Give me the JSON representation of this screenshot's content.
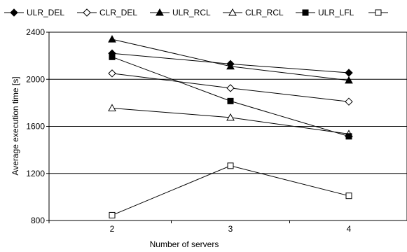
{
  "chart_data": {
    "type": "line",
    "title": "",
    "xlabel": "Number of servers",
    "ylabel": "Average execution time [s]",
    "categories": [
      "2",
      "3",
      "4"
    ],
    "y_ticks": [
      "800",
      "1200",
      "1600",
      "2000",
      "2400"
    ],
    "ylim": [
      800,
      2400
    ],
    "grid": "horizontal",
    "legend_position": "top",
    "series": [
      {
        "name": "ULR_DEL",
        "marker": "diamond-filled",
        "values": [
          2220,
          2130,
          2055
        ]
      },
      {
        "name": "CLR_DEL",
        "marker": "diamond-open",
        "values": [
          2050,
          1925,
          1810
        ]
      },
      {
        "name": "ULR_RCL",
        "marker": "triangle-filled",
        "values": [
          2340,
          2110,
          1990
        ]
      },
      {
        "name": "CLR_RCL",
        "marker": "triangle-open",
        "values": [
          1755,
          1675,
          1535
        ]
      },
      {
        "name": "ULR_LFL",
        "marker": "square-filled",
        "values": [
          2190,
          1815,
          1515
        ]
      },
      {
        "name": "",
        "marker": "square-open",
        "values": [
          845,
          1265,
          1010
        ]
      }
    ],
    "colors": {
      "line": "#000000",
      "grid": "#000000",
      "plot_bg": "#ffffff"
    }
  }
}
